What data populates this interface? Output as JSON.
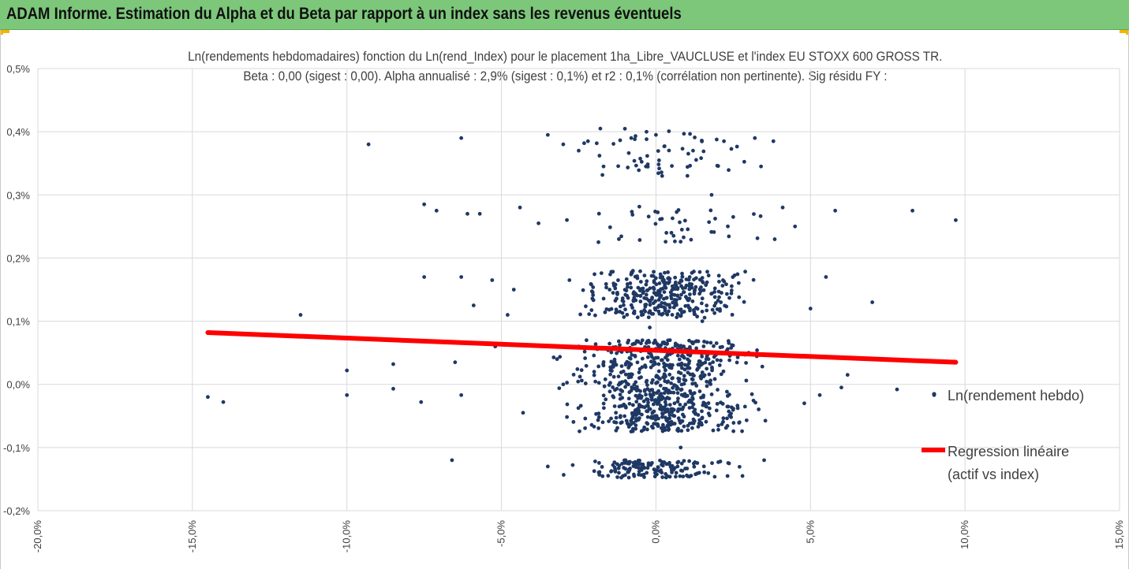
{
  "header": {
    "title": "ADAM Informe. Estimation du Alpha et du Beta par rapport à un index sans les revenus éventuels"
  },
  "colors": {
    "header_bg": "#7dc77b",
    "accent_corner": "#f5b400",
    "points": "#1f3864",
    "regression": "#ff0000",
    "grid": "#d9d9d9"
  },
  "chart_data": {
    "type": "scatter",
    "title": "Ln(rendements hebdomadaires) fonction du Ln(rend_Index) pour le placement 1ha_Libre_VAUCLUSE et l'index EU STOXX 600 GROSS TR.",
    "subtitle": "Beta : 0,00 (sigest : 0,00). Alpha annualisé : 2,9% (sigest : 0,1%) et r2 : 0,1% (corrélation non pertinente). Sig résidu FY :",
    "xlabel": "",
    "ylabel": "",
    "xlim": [
      -20,
      15
    ],
    "ylim": [
      -0.2,
      0.5
    ],
    "x_ticks": [
      "-20,0%",
      "-15,0%",
      "-10,0%",
      "-5,0%",
      "0,0%",
      "5,0%",
      "10,0%",
      "15,0%"
    ],
    "y_ticks": [
      "0,5%",
      "0,4%",
      "0,3%",
      "0,2%",
      "0,1%",
      "0,0%",
      "-0,1%",
      "-0,2%"
    ],
    "grid": true,
    "legend_placement": "right",
    "series": [
      {
        "name": "Ln(rendement hebdo)",
        "kind": "points",
        "points": [
          [
            -14.5,
            -0.02
          ],
          [
            -14.0,
            -0.028
          ],
          [
            -11.5,
            0.11
          ],
          [
            -10.0,
            -0.017
          ],
          [
            -10.0,
            0.022
          ],
          [
            -9.3,
            0.38
          ],
          [
            -8.5,
            -0.007
          ],
          [
            -8.5,
            0.032
          ],
          [
            -7.5,
            0.17
          ],
          [
            -7.5,
            0.285
          ],
          [
            -7.6,
            -0.028
          ],
          [
            -7.1,
            0.275
          ],
          [
            -6.6,
            -0.12
          ],
          [
            -6.5,
            0.035
          ],
          [
            -6.3,
            0.17
          ],
          [
            -6.3,
            0.39
          ],
          [
            -6.3,
            -0.017
          ],
          [
            -6.1,
            0.27
          ],
          [
            -5.9,
            0.125
          ],
          [
            -5.7,
            0.27
          ],
          [
            -5.3,
            0.165
          ],
          [
            -5.2,
            0.06
          ],
          [
            -4.8,
            0.11
          ],
          [
            -4.6,
            0.15
          ],
          [
            -4.4,
            0.28
          ],
          [
            -4.3,
            -0.045
          ],
          [
            -3.8,
            0.255
          ],
          [
            -3.5,
            0.395
          ],
          [
            -3.2,
            0.04
          ],
          [
            -3.0,
            0.38
          ],
          [
            -2.8,
            0.165
          ],
          [
            -2.5,
            0.37
          ],
          [
            -2.2,
            0.385
          ],
          [
            -1.8,
            0.405
          ],
          [
            -1.2,
            0.23
          ],
          [
            -0.8,
            0.39
          ],
          [
            0.0,
            0.395
          ],
          [
            0.2,
            0.33
          ],
          [
            0.5,
            0.24
          ],
          [
            1.2,
            0.37
          ],
          [
            1.8,
            0.3
          ],
          [
            2.2,
            0.385
          ],
          [
            2.5,
            0.265
          ],
          [
            3.2,
            0.39
          ],
          [
            3.4,
            0.345
          ],
          [
            3.8,
            0.385
          ],
          [
            4.1,
            0.28
          ],
          [
            4.5,
            0.25
          ],
          [
            5.0,
            0.12
          ],
          [
            5.8,
            0.275
          ],
          [
            5.5,
            0.17
          ],
          [
            6.0,
            -0.005
          ],
          [
            6.2,
            0.015
          ],
          [
            7.0,
            0.13
          ],
          [
            7.8,
            -0.008
          ],
          [
            8.3,
            0.275
          ],
          [
            9.0,
            -0.017
          ],
          [
            9.7,
            0.26
          ],
          [
            5.3,
            -0.017
          ],
          [
            4.8,
            -0.03
          ],
          [
            3.5,
            -0.12
          ],
          [
            2.8,
            -0.145
          ],
          [
            0.8,
            -0.1
          ],
          [
            -1.2,
            -0.14
          ],
          [
            -3.5,
            -0.13
          ],
          [
            -2.5,
            0.06
          ],
          [
            1.5,
            0.1
          ],
          [
            -0.2,
            0.09
          ],
          [
            0.9,
            0.06
          ],
          [
            -0.5,
            0.14
          ],
          [
            0.4,
            0.16
          ],
          [
            1.1,
            0.12
          ],
          [
            -1.5,
            0.15
          ],
          [
            2.1,
            0.13
          ],
          [
            -2.0,
            0.02
          ],
          [
            0.3,
            0.03
          ],
          [
            1.7,
            0.04
          ],
          [
            -0.8,
            -0.01
          ],
          [
            0.6,
            -0.03
          ],
          [
            2.4,
            -0.05
          ],
          [
            -1.1,
            -0.06
          ],
          [
            -3.0,
            0.0
          ],
          [
            3.0,
            0.05
          ],
          [
            -0.3,
            -0.14
          ],
          [
            0.7,
            -0.13
          ],
          [
            1.4,
            -0.14
          ]
        ]
      },
      {
        "name": "Regression linéaire",
        "name_line2": "(actif vs index)",
        "kind": "line",
        "points": [
          [
            -14.5,
            0.082
          ],
          [
            9.7,
            0.035
          ]
        ]
      }
    ],
    "point_bands": [
      {
        "y_min": -0.148,
        "y_max": -0.12,
        "x_mean": 0.0,
        "x_sd": 1.6,
        "x_min": -4.0,
        "x_max": 3.0,
        "count": 140
      },
      {
        "y_min": -0.075,
        "y_max": 0.07,
        "x_mean": 0.2,
        "x_sd": 1.7,
        "x_min": -6.5,
        "x_max": 6.5,
        "count": 700
      },
      {
        "y_min": 0.105,
        "y_max": 0.18,
        "x_mean": 0.2,
        "x_sd": 1.6,
        "x_min": -5.5,
        "x_max": 5.2,
        "count": 330
      },
      {
        "y_min": 0.225,
        "y_max": 0.285,
        "x_mean": 0.5,
        "x_sd": 1.9,
        "x_min": -4.5,
        "x_max": 5.0,
        "count": 40
      },
      {
        "y_min": 0.325,
        "y_max": 0.405,
        "x_mean": 0.3,
        "x_sd": 1.9,
        "x_min": -3.5,
        "x_max": 4.0,
        "count": 55
      }
    ]
  }
}
